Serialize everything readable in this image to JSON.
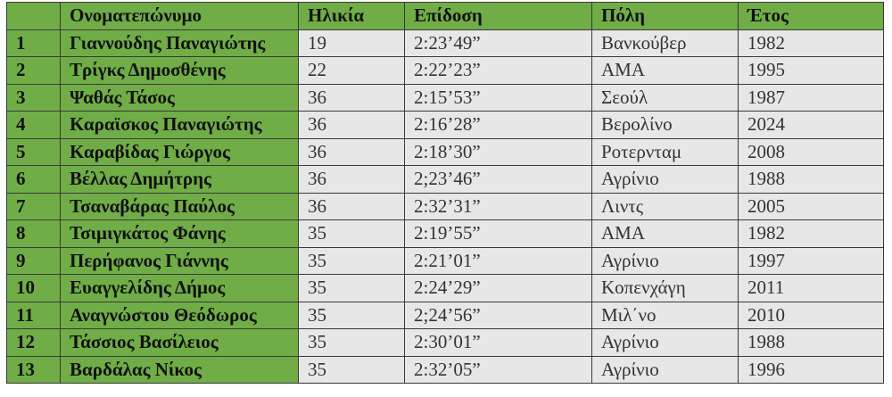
{
  "colors": {
    "header_bg": "#70ad47",
    "cell_bg": "#e7e7e7",
    "border": "#3a3a3a"
  },
  "table": {
    "headers": [
      "",
      "Ονοματεπώνυμο",
      "Ηλικία",
      "Επίδοση",
      "Πόλη",
      "Έτος"
    ],
    "rows": [
      [
        "1",
        "Γιαννούδης Παναγιώτης",
        "19",
        "2:23’49”",
        "Βανκούβερ",
        "1982"
      ],
      [
        "2",
        "Τρίγκς Δημοσθένης",
        "22",
        "2:22’23”",
        "ΑΜΑ",
        "1995"
      ],
      [
        "3",
        "Ψαθάς Τάσος",
        "36",
        "2:15’53”",
        "Σεούλ",
        "1987"
      ],
      [
        "4",
        "Καραϊσκος Παναγιώτης",
        "36",
        "2:16’28”",
        "Βερολίνο",
        "2024"
      ],
      [
        "5",
        "Καραβίδας Γιώργος",
        "36",
        "2:18’30”",
        "Ροτερνταμ",
        "2008"
      ],
      [
        "6",
        "Βέλλας Δημήτρης",
        "36",
        "2;23’46”",
        "Αγρίνιο",
        "1988"
      ],
      [
        "7",
        "Τσαναβάρας Παύλος",
        "36",
        "2:32’31”",
        "Λιντς",
        "2005"
      ],
      [
        "8",
        "Τσιμιγκάτος Φάνης",
        "35",
        "2:19’55”",
        "ΑΜΑ",
        "1982"
      ],
      [
        "9",
        "Περήφανος Γιάννης",
        "35",
        "2:21’01”",
        "Αγρίνιο",
        "1997"
      ],
      [
        "10",
        "Ευαγγελίδης Δήμος",
        "35",
        "2:24’29”",
        "Κοπενχάγη",
        "2011"
      ],
      [
        "11",
        "Αναγνώστου Θεόδωρος",
        "35",
        "2;24’56”",
        "Μιλ΄νο",
        "2010"
      ],
      [
        "12",
        "Τάσσιος Βασίλειος",
        "35",
        "2:30’01”",
        "Αγρίνιο",
        "1988"
      ],
      [
        "13",
        "Βαρδάλας Νίκος",
        "35",
        "2:32’05”",
        "Αγρίνιο",
        "1996"
      ]
    ]
  }
}
